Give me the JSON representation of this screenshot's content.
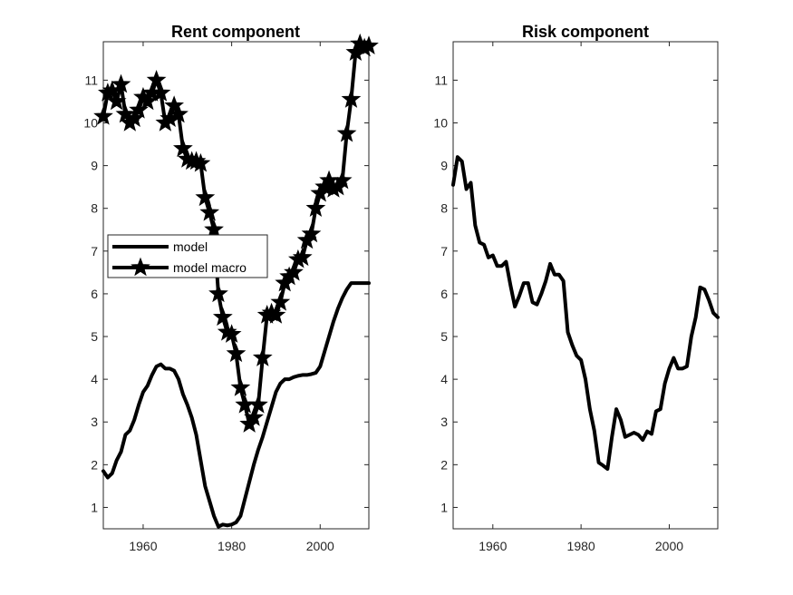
{
  "chart_data": [
    {
      "type": "line",
      "title": "Rent component",
      "xlabel": "",
      "ylabel": "",
      "xlim": [
        1951,
        2011
      ],
      "ylim": [
        0.5,
        11.9
      ],
      "xticks": [
        1960,
        1980,
        2000
      ],
      "yticks": [
        1,
        2,
        3,
        4,
        5,
        6,
        7,
        8,
        9,
        10,
        11
      ],
      "grid": false,
      "legend": "center-left",
      "series": [
        {
          "name": "model",
          "marker": "none",
          "x": [
            1951,
            1952,
            1953,
            1954,
            1955,
            1956,
            1957,
            1958,
            1959,
            1960,
            1961,
            1962,
            1963,
            1964,
            1965,
            1966,
            1967,
            1968,
            1969,
            1970,
            1971,
            1972,
            1973,
            1974,
            1975,
            1976,
            1977,
            1978,
            1979,
            1980,
            1981,
            1982,
            1983,
            1984,
            1985,
            1986,
            1987,
            1988,
            1989,
            1990,
            1991,
            1992,
            1993,
            1994,
            1995,
            1996,
            1997,
            1998,
            1999,
            2000,
            2001,
            2002,
            2003,
            2004,
            2005,
            2006,
            2007,
            2008,
            2009,
            2010,
            2011
          ],
          "values": [
            1.85,
            1.7,
            1.8,
            2.1,
            2.3,
            2.7,
            2.8,
            3.05,
            3.4,
            3.7,
            3.85,
            4.1,
            4.3,
            4.35,
            4.25,
            4.25,
            4.2,
            4.0,
            3.65,
            3.4,
            3.1,
            2.7,
            2.1,
            1.5,
            1.15,
            0.8,
            0.55,
            0.6,
            0.58,
            0.6,
            0.65,
            0.8,
            1.2,
            1.6,
            2.0,
            2.35,
            2.65,
            3.0,
            3.35,
            3.7,
            3.9,
            4.0,
            4.0,
            4.05,
            4.08,
            4.1,
            4.1,
            4.12,
            4.15,
            4.3,
            4.65,
            5.0,
            5.35,
            5.65,
            5.9,
            6.1,
            6.25,
            6.25,
            6.25,
            6.25,
            6.25
          ]
        },
        {
          "name": "model macro",
          "marker": "star",
          "x": [
            1951,
            1952,
            1953,
            1954,
            1955,
            1956,
            1957,
            1958,
            1959,
            1960,
            1961,
            1962,
            1963,
            1964,
            1965,
            1966,
            1967,
            1968,
            1969,
            1970,
            1971,
            1972,
            1973,
            1974,
            1975,
            1976,
            1977,
            1978,
            1979,
            1980,
            1981,
            1982,
            1983,
            1984,
            1985,
            1986,
            1987,
            1988,
            1989,
            1990,
            1991,
            1992,
            1993,
            1994,
            1995,
            1996,
            1997,
            1998,
            1999,
            2000,
            2001,
            2002,
            2003,
            2004,
            2005,
            2006,
            2007,
            2008,
            2009,
            2010,
            2011
          ],
          "values": [
            10.15,
            10.7,
            10.75,
            10.5,
            10.9,
            10.2,
            10.0,
            10.1,
            10.3,
            10.6,
            10.5,
            10.7,
            11.0,
            10.7,
            10.0,
            10.1,
            10.4,
            10.2,
            9.4,
            9.15,
            9.1,
            9.1,
            9.05,
            8.25,
            7.9,
            7.5,
            6.0,
            5.45,
            5.1,
            5.05,
            4.6,
            3.8,
            3.4,
            2.95,
            3.1,
            3.4,
            4.5,
            5.5,
            5.55,
            5.5,
            5.8,
            6.25,
            6.4,
            6.5,
            6.8,
            6.85,
            7.25,
            7.4,
            8.0,
            8.35,
            8.5,
            8.65,
            8.45,
            8.5,
            8.65,
            9.75,
            10.55,
            11.65,
            11.85,
            11.75,
            11.8
          ]
        }
      ]
    },
    {
      "type": "line",
      "title": "Risk component",
      "xlabel": "",
      "ylabel": "",
      "xlim": [
        1951,
        2011
      ],
      "ylim": [
        0.5,
        11.9
      ],
      "xticks": [
        1960,
        1980,
        2000
      ],
      "yticks": [
        1,
        2,
        3,
        4,
        5,
        6,
        7,
        8,
        9,
        10,
        11
      ],
      "grid": false,
      "legend": "none",
      "series": [
        {
          "marker": "none",
          "x": [
            1951,
            1952,
            1953,
            1954,
            1955,
            1956,
            1957,
            1958,
            1959,
            1960,
            1961,
            1962,
            1963,
            1964,
            1965,
            1966,
            1967,
            1968,
            1969,
            1970,
            1971,
            1972,
            1973,
            1974,
            1975,
            1976,
            1977,
            1978,
            1979,
            1980,
            1981,
            1982,
            1983,
            1984,
            1985,
            1986,
            1987,
            1988,
            1989,
            1990,
            1991,
            1992,
            1993,
            1994,
            1995,
            1996,
            1997,
            1998,
            1999,
            2000,
            2001,
            2002,
            2003,
            2004,
            2005,
            2006,
            2007,
            2008,
            2009,
            2010,
            2011
          ],
          "values": [
            8.55,
            9.2,
            9.1,
            8.45,
            8.6,
            7.6,
            7.2,
            7.15,
            6.85,
            6.9,
            6.65,
            6.65,
            6.75,
            6.2,
            5.7,
            5.95,
            6.25,
            6.25,
            5.8,
            5.75,
            6.0,
            6.3,
            6.7,
            6.45,
            6.45,
            6.3,
            5.1,
            4.8,
            4.55,
            4.45,
            4.0,
            3.3,
            2.8,
            2.05,
            1.98,
            1.9,
            2.65,
            3.3,
            3.05,
            2.65,
            2.7,
            2.75,
            2.7,
            2.58,
            2.78,
            2.72,
            3.25,
            3.3,
            3.9,
            4.25,
            4.5,
            4.25,
            4.25,
            4.3,
            5.0,
            5.45,
            6.15,
            6.1,
            5.85,
            5.55,
            5.45
          ]
        }
      ]
    }
  ]
}
